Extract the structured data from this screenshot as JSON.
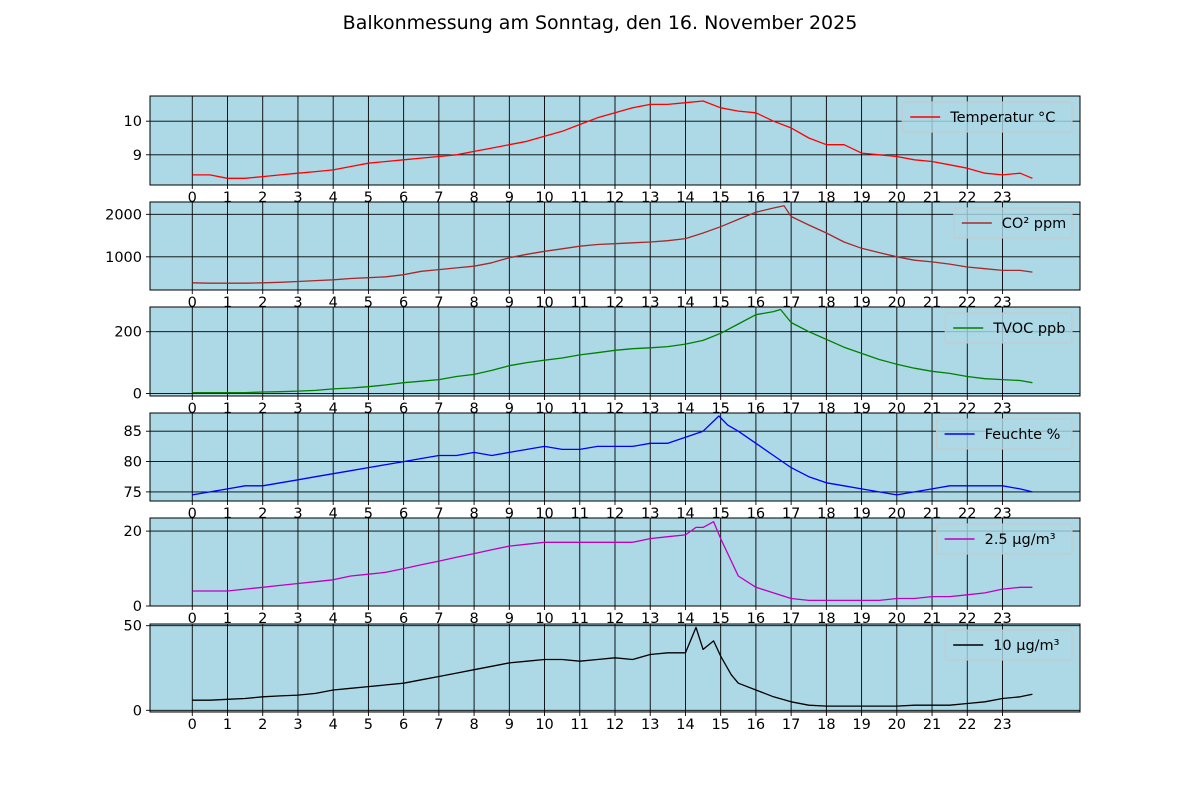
{
  "title": "Balkonmessung am Sonntag, den 16. November 2025",
  "colors": {
    "background": "#add8e6",
    "grid": "#000000"
  },
  "hour_ticks": [
    "0",
    "1",
    "2",
    "3",
    "4",
    "5",
    "6",
    "7",
    "8",
    "9",
    "10",
    "11",
    "12",
    "13",
    "14",
    "15",
    "16",
    "17",
    "18",
    "19",
    "20",
    "21",
    "22",
    "23"
  ],
  "chart_data": [
    {
      "type": "line",
      "legend": "top-right",
      "grid": true,
      "xlim": [
        -1.2,
        25.2
      ],
      "ylim": [
        8.1,
        10.75
      ],
      "yticks": [
        9,
        10
      ],
      "xlabel": "",
      "ylabel": "",
      "series": [
        {
          "name": "Temperatur °C",
          "color": "#ff0000",
          "x": [
            0,
            0.5,
            1,
            1.5,
            2,
            2.5,
            3,
            3.5,
            4,
            4.5,
            5,
            5.5,
            6,
            6.5,
            7,
            7.5,
            8,
            8.5,
            9,
            9.5,
            10,
            10.5,
            11,
            11.5,
            12,
            12.5,
            13,
            13.5,
            14,
            14.5,
            15,
            15.5,
            16,
            16.5,
            17,
            17.5,
            18,
            18.5,
            19,
            19.5,
            20,
            20.5,
            21,
            21.5,
            22,
            22.5,
            23,
            23.5,
            23.85
          ],
          "y": [
            8.4,
            8.4,
            8.3,
            8.3,
            8.35,
            8.4,
            8.45,
            8.5,
            8.55,
            8.65,
            8.75,
            8.8,
            8.85,
            8.9,
            8.95,
            9.0,
            9.1,
            9.2,
            9.3,
            9.4,
            9.55,
            9.7,
            9.9,
            10.1,
            10.25,
            10.4,
            10.5,
            10.5,
            10.55,
            10.6,
            10.4,
            10.3,
            10.25,
            10.0,
            9.8,
            9.5,
            9.3,
            9.3,
            9.05,
            9.0,
            8.95,
            8.85,
            8.8,
            8.7,
            8.6,
            8.45,
            8.4,
            8.45,
            8.3
          ]
        }
      ]
    },
    {
      "type": "line",
      "legend": "top-right",
      "grid": true,
      "xlim": [
        -1.2,
        25.2
      ],
      "ylim": [
        220,
        2290
      ],
      "yticks": [
        1000,
        2000
      ],
      "xlabel": "",
      "ylabel": "",
      "series": [
        {
          "name": "CO² ppm",
          "color": "#a52a2a",
          "x": [
            0,
            0.5,
            1,
            1.5,
            2,
            2.5,
            3,
            3.5,
            4,
            4.5,
            5,
            5.5,
            6,
            6.5,
            7,
            7.5,
            8,
            8.5,
            9,
            9.5,
            10,
            10.5,
            11,
            11.5,
            12,
            12.5,
            13,
            13.5,
            14,
            14.5,
            15,
            15.5,
            16,
            16.5,
            16.8,
            17,
            17.5,
            18,
            18.5,
            19,
            19.5,
            20,
            20.5,
            21,
            21.5,
            22,
            22.5,
            23,
            23.5,
            23.85
          ],
          "y": [
            390,
            380,
            380,
            380,
            390,
            400,
            420,
            440,
            460,
            490,
            510,
            530,
            580,
            660,
            700,
            740,
            780,
            860,
            980,
            1060,
            1130,
            1190,
            1250,
            1290,
            1310,
            1330,
            1350,
            1380,
            1430,
            1560,
            1710,
            1880,
            2050,
            2150,
            2200,
            1950,
            1750,
            1560,
            1350,
            1200,
            1100,
            1000,
            920,
            880,
            830,
            760,
            720,
            680,
            680,
            640
          ]
        }
      ]
    },
    {
      "type": "line",
      "legend": "top-right",
      "grid": true,
      "xlim": [
        -1.2,
        25.2
      ],
      "ylim": [
        -8,
        280
      ],
      "yticks": [
        0,
        200
      ],
      "xlabel": "",
      "ylabel": "",
      "series": [
        {
          "name": "TVOC ppb",
          "color": "#008000",
          "x": [
            0,
            0.5,
            1,
            1.5,
            2,
            2.5,
            3,
            3.5,
            4,
            4.5,
            5,
            5.5,
            6,
            6.5,
            7,
            7.5,
            8,
            8.5,
            9,
            9.5,
            10,
            10.5,
            11,
            11.5,
            12,
            12.5,
            13,
            13.5,
            14,
            14.5,
            15,
            15.5,
            16,
            16.5,
            16.7,
            17,
            17.5,
            18,
            18.5,
            19,
            19.5,
            20,
            20.5,
            21,
            21.5,
            22,
            22.5,
            23,
            23.5,
            23.85
          ],
          "y": [
            3,
            3,
            3,
            3,
            5,
            6,
            8,
            10,
            15,
            18,
            22,
            28,
            35,
            40,
            45,
            55,
            62,
            75,
            90,
            100,
            108,
            115,
            125,
            132,
            140,
            145,
            148,
            152,
            160,
            172,
            195,
            225,
            255,
            265,
            272,
            230,
            200,
            175,
            150,
            130,
            110,
            95,
            82,
            72,
            65,
            55,
            48,
            45,
            42,
            35
          ]
        }
      ]
    },
    {
      "type": "line",
      "legend": "top-right",
      "grid": true,
      "xlim": [
        -1.2,
        25.2
      ],
      "ylim": [
        73.5,
        88
      ],
      "yticks": [
        75,
        80,
        85
      ],
      "xlabel": "",
      "ylabel": "",
      "series": [
        {
          "name": "Feuchte %",
          "color": "#0000ff",
          "x": [
            0,
            0.5,
            1,
            1.5,
            2,
            2.5,
            3,
            3.5,
            4,
            4.5,
            5,
            5.5,
            6,
            6.5,
            7,
            7.5,
            8,
            8.5,
            9,
            9.5,
            10,
            10.5,
            11,
            11.5,
            12,
            12.5,
            13,
            13.5,
            14,
            14.5,
            14.95,
            15.2,
            15.5,
            16,
            16.5,
            17,
            17.5,
            18,
            18.5,
            19,
            19.5,
            20,
            20.5,
            21,
            21.5,
            22,
            22.5,
            23,
            23.5,
            23.85
          ],
          "y": [
            74.5,
            75,
            75.5,
            76,
            76,
            76.5,
            77,
            77.5,
            78,
            78.5,
            79,
            79.5,
            80,
            80.5,
            81,
            81,
            81.5,
            81,
            81.5,
            82,
            82.5,
            82,
            82,
            82.5,
            82.5,
            82.5,
            83,
            83,
            84,
            85,
            87.5,
            86,
            85,
            83,
            81,
            79,
            77.5,
            76.5,
            76,
            75.5,
            75,
            74.5,
            75,
            75.5,
            76,
            76,
            76,
            76,
            75.5,
            75
          ]
        }
      ]
    },
    {
      "type": "line",
      "legend": "top-right",
      "grid": true,
      "xlim": [
        -1.2,
        25.2
      ],
      "ylim": [
        0,
        23.5
      ],
      "yticks": [
        0,
        20
      ],
      "xlabel": "",
      "ylabel": "",
      "series": [
        {
          "name": "2.5 µg/m³",
          "color": "#bf00bf",
          "x": [
            0,
            0.5,
            1,
            1.5,
            2,
            2.5,
            3,
            3.5,
            4,
            4.5,
            5,
            5.5,
            6,
            6.5,
            7,
            7.5,
            8,
            8.5,
            9,
            9.5,
            10,
            10.5,
            11,
            11.5,
            12,
            12.5,
            13,
            13.5,
            14,
            14.3,
            14.5,
            14.8,
            15,
            15.3,
            15.5,
            16,
            16.5,
            17,
            17.5,
            18,
            18.5,
            19,
            19.5,
            20,
            20.5,
            21,
            21.5,
            22,
            22.5,
            23,
            23.5,
            23.85
          ],
          "y": [
            4,
            4,
            4,
            4.5,
            5,
            5.5,
            6,
            6.5,
            7,
            8,
            8.5,
            9,
            10,
            11,
            12,
            13,
            14,
            15,
            16,
            16.5,
            17,
            17,
            17,
            17,
            17,
            17,
            18,
            18.5,
            19,
            21,
            21,
            22.5,
            18,
            12,
            8,
            5,
            3.5,
            2,
            1.5,
            1.5,
            1.5,
            1.5,
            1.5,
            2,
            2,
            2.5,
            2.5,
            3,
            3.5,
            4.5,
            5,
            5
          ]
        }
      ]
    },
    {
      "type": "line",
      "legend": "top-right",
      "grid": true,
      "xlim": [
        -1.2,
        25.2
      ],
      "ylim": [
        -1,
        51
      ],
      "yticks": [
        0,
        50
      ],
      "xlabel": "",
      "ylabel": "",
      "series": [
        {
          "name": "10 µg/m³",
          "color": "#000000",
          "x": [
            0,
            0.5,
            1,
            1.5,
            2,
            2.5,
            3,
            3.5,
            4,
            4.5,
            5,
            5.5,
            6,
            6.5,
            7,
            7.5,
            8,
            8.5,
            9,
            9.5,
            10,
            10.5,
            11,
            11.5,
            12,
            12.5,
            13,
            13.5,
            14,
            14.3,
            14.5,
            14.8,
            15,
            15.3,
            15.5,
            16,
            16.5,
            17,
            17.5,
            18,
            18.5,
            19,
            19.5,
            20,
            20.5,
            21,
            21.5,
            22,
            22.5,
            23,
            23.5,
            23.85
          ],
          "y": [
            6,
            6,
            6.5,
            7,
            8,
            8.5,
            9,
            10,
            12,
            13,
            14,
            15,
            16,
            18,
            20,
            22,
            24,
            26,
            28,
            29,
            30,
            30,
            29,
            30,
            31,
            30,
            33,
            34,
            34,
            49,
            36,
            41,
            32,
            21,
            16,
            12,
            8,
            5,
            3,
            2.5,
            2.5,
            2.5,
            2.5,
            2.5,
            3,
            3,
            3,
            4,
            5,
            7,
            8,
            9.5
          ]
        }
      ]
    }
  ]
}
